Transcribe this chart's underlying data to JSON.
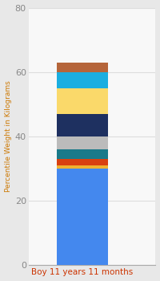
{
  "category": "Boy 11 years 11 months",
  "segments": [
    {
      "value": 30.0,
      "color": "#4488EE"
    },
    {
      "value": 1.0,
      "color": "#F0B030"
    },
    {
      "value": 2.0,
      "color": "#D94010"
    },
    {
      "value": 3.0,
      "color": "#1A7A8A"
    },
    {
      "value": 4.0,
      "color": "#BBBBBB"
    },
    {
      "value": 7.0,
      "color": "#1E3060"
    },
    {
      "value": 8.0,
      "color": "#FAD96A"
    },
    {
      "value": 5.0,
      "color": "#1AAEE0"
    },
    {
      "value": 3.0,
      "color": "#B5653A"
    }
  ],
  "ylabel": "Percentile Weight in Kilograms",
  "ylim": [
    0,
    80
  ],
  "yticks": [
    0,
    20,
    40,
    60,
    80
  ],
  "bg_color": "#E8E8E8",
  "plot_bg_color": "#F8F8F8",
  "xlabel_color": "#CC3300",
  "ylabel_color": "#CC7700",
  "tick_color": "#888888",
  "grid_color": "#DDDDDD"
}
